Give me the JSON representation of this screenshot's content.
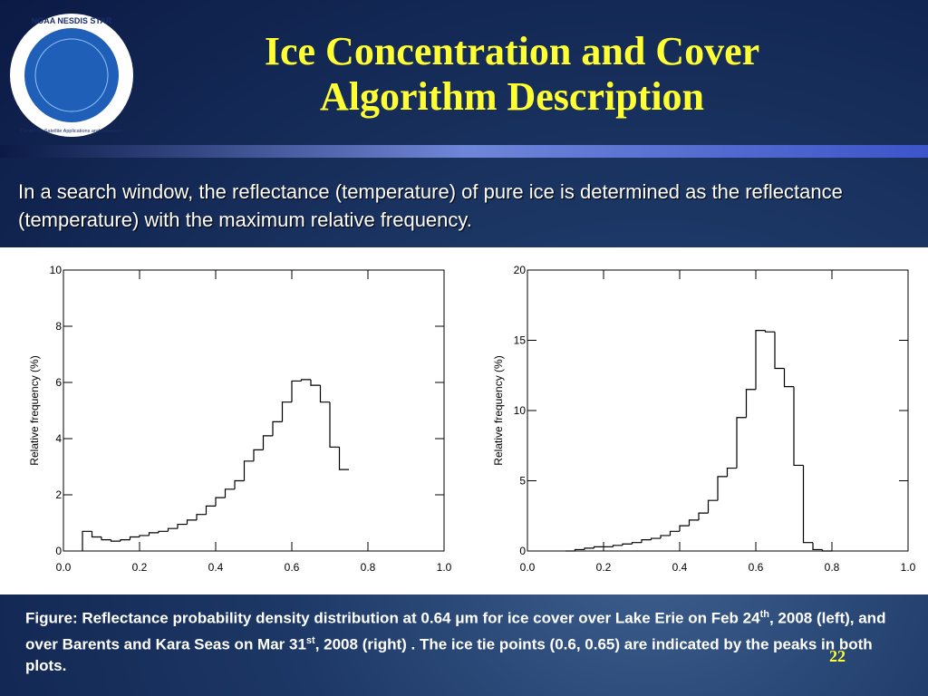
{
  "header": {
    "title_line1": "Ice Concentration and Cover",
    "title_line2": "Algorithm Description",
    "logo_top": "NOAA NESDIS STAR",
    "logo_bottom": "Center for Satellite Applications and Research"
  },
  "intro": "In a search window, the reflectance (temperature) of pure ice is determined as the reflectance (temperature) with the maximum relative frequency.",
  "chart_data": [
    {
      "type": "histogram",
      "ylabel": "Relative frequency (%)",
      "color": "#000000",
      "bins": [
        0.05,
        0.075,
        0.1,
        0.125,
        0.15,
        0.175,
        0.2,
        0.225,
        0.25,
        0.275,
        0.3,
        0.325,
        0.35,
        0.375,
        0.4,
        0.425,
        0.45,
        0.475,
        0.5,
        0.525,
        0.55,
        0.575,
        0.6,
        0.625,
        0.65,
        0.675,
        0.7,
        0.725,
        0.75
      ],
      "values": [
        0.7,
        0.5,
        0.4,
        0.35,
        0.4,
        0.5,
        0.55,
        0.65,
        0.7,
        0.8,
        0.95,
        1.1,
        1.3,
        1.6,
        1.9,
        2.2,
        2.5,
        3.2,
        3.6,
        4.1,
        4.6,
        5.3,
        6.05,
        6.1,
        5.9,
        5.3,
        3.7,
        2.9
      ],
      "xlim": [
        0,
        1
      ],
      "ylim": [
        0,
        10
      ],
      "xticks": [
        {
          "value": 0,
          "label": "0.0"
        },
        0.2,
        0.4,
        0.6,
        0.8,
        {
          "value": 1,
          "label": "1.0"
        }
      ],
      "yticks": [
        0,
        2,
        4,
        6,
        8,
        10
      ]
    },
    {
      "type": "histogram",
      "ylabel": "Relative frequency (%)",
      "color": "#000000",
      "bins": [
        0.1,
        0.125,
        0.15,
        0.175,
        0.2,
        0.225,
        0.25,
        0.275,
        0.3,
        0.325,
        0.35,
        0.375,
        0.4,
        0.425,
        0.45,
        0.475,
        0.5,
        0.525,
        0.55,
        0.575,
        0.6,
        0.625,
        0.65,
        0.675,
        0.7,
        0.725,
        0.75,
        0.775,
        0.8
      ],
      "values": [
        0,
        0.1,
        0.2,
        0.3,
        0.3,
        0.4,
        0.5,
        0.6,
        0.8,
        0.9,
        1.1,
        1.4,
        1.8,
        2.2,
        2.7,
        3.6,
        5.3,
        5.9,
        9.5,
        11.5,
        15.7,
        15.6,
        13,
        11.7,
        6.1,
        0.6,
        0.1,
        0
      ],
      "xlim": [
        0,
        1
      ],
      "ylim": [
        0,
        20
      ],
      "xticks": [
        {
          "value": 0,
          "label": "0.0"
        },
        0.2,
        0.4,
        0.6,
        0.8,
        {
          "value": 1,
          "label": "1.0"
        }
      ],
      "yticks": [
        0,
        5,
        10,
        15,
        20
      ]
    }
  ],
  "caption": [
    "Figure: Reflectance probability density distribution at 0.64 μm for ice cover over Lake Erie on Feb 24",
    "th",
    ", 2008 (left), and over Barents and Kara Seas on Mar 31",
    "st",
    ", 2008 (right) . The ice tie points (0.6, 0.65) are indicated by the peaks in both plots."
  ],
  "page_number": "22"
}
